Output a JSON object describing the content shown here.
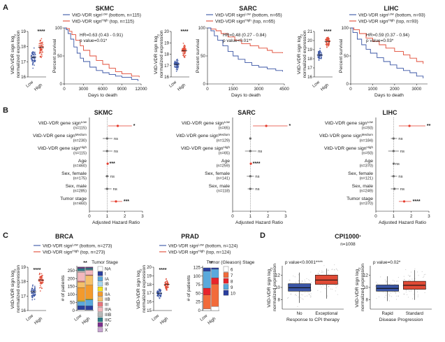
{
  "colors": {
    "low": "#3a55a5",
    "high": "#e04a35",
    "forest_point": "#e53b2c",
    "forest_gray": "#666666",
    "stage": [
      "#ffffff",
      "#2b3f9e",
      "#5aa9dc",
      "#a8d9f0",
      "#f3e51c",
      "#f39a2d",
      "#f5c06a",
      "#e8747c",
      "#f3b8bd",
      "#b8b8b8",
      "#2c7b87",
      "#7d2f8e",
      "#c7a4d1",
      "#8c8c8c",
      "#505050"
    ],
    "gleason": [
      "#ffffff",
      "#f26b3a",
      "#e8232a",
      "#5aa9dc",
      "#2b3f9e"
    ]
  },
  "panel_A": {
    "label": "A",
    "km_xlabel": "Days to death",
    "km_ylabel": "Percent survival",
    "dot_ylabel": [
      "VitD-VDR sign log",
      "normalized expression"
    ],
    "dot_ylabel_sub": "2",
    "dot_low": "Low",
    "dot_high": "High",
    "subpanels": [
      {
        "title": "SKMC",
        "legend_low": "VitD-VDR sign",
        "legend_low_sup": "Low",
        "legend_low_rest": " (bottom, n=115)",
        "legend_high": "VitD-VDR sign",
        "legend_high_sup": "High",
        "legend_high_rest": " (top, n=115)",
        "hr": "HR=0.63 (0.43 - 0.91)",
        "pval": "p value=0.01*",
        "sig": "****",
        "dot_yticks": [
          "16",
          "17",
          "18",
          "19"
        ],
        "xticks": [
          "0",
          "3000",
          "6000",
          "9000",
          "12000"
        ],
        "xmax": 12000,
        "yticks": [
          "0",
          "50",
          "100"
        ],
        "low_curve": [
          [
            0,
            100
          ],
          [
            300,
            97
          ],
          [
            600,
            90
          ],
          [
            1000,
            80
          ],
          [
            1500,
            66
          ],
          [
            2000,
            55
          ],
          [
            2500,
            46
          ],
          [
            3000,
            40
          ],
          [
            4000,
            30
          ],
          [
            5000,
            24
          ],
          [
            6000,
            20
          ],
          [
            7000,
            17
          ],
          [
            8000,
            14
          ],
          [
            9000,
            12
          ],
          [
            10500,
            8
          ],
          [
            11500,
            5
          ]
        ],
        "high_curve": [
          [
            0,
            100
          ],
          [
            400,
            99
          ],
          [
            800,
            94
          ],
          [
            1200,
            88
          ],
          [
            1800,
            78
          ],
          [
            2500,
            68
          ],
          [
            3000,
            60
          ],
          [
            4000,
            50
          ],
          [
            5000,
            42
          ],
          [
            6000,
            35
          ],
          [
            7000,
            28
          ],
          [
            8000,
            22
          ],
          [
            9000,
            18
          ],
          [
            10500,
            14
          ],
          [
            11700,
            12
          ]
        ],
        "dot_low_mean": 17.3,
        "dot_high_mean": 17.95,
        "dot_ymin": 16,
        "dot_ymax": 19
      },
      {
        "title": "SARC",
        "legend_low": "VitD-VDR sign",
        "legend_low_sup": "Low",
        "legend_low_rest": " (bottom, n=65)",
        "legend_high": "VitD-VDR sign",
        "legend_high_sup": "High",
        "legend_high_rest": " (top, n=65)",
        "hr": "HR=0.48 (0.27 - 0.84)",
        "pval": "p value<0.01**",
        "sig": "****",
        "dot_yticks": [
          "16",
          "17",
          "18",
          "19",
          "20"
        ],
        "xticks": [
          "0",
          "1500",
          "3000",
          "4500"
        ],
        "xmax": 4500,
        "yticks": [
          "0",
          "50",
          "100"
        ],
        "low_curve": [
          [
            0,
            100
          ],
          [
            200,
            95
          ],
          [
            400,
            86
          ],
          [
            600,
            78
          ],
          [
            900,
            68
          ],
          [
            1200,
            58
          ],
          [
            1500,
            50
          ],
          [
            1800,
            44
          ],
          [
            2200,
            38
          ],
          [
            2600,
            33
          ],
          [
            3000,
            30
          ],
          [
            3500,
            27
          ],
          [
            4000,
            24
          ],
          [
            4400,
            22
          ]
        ],
        "high_curve": [
          [
            0,
            100
          ],
          [
            200,
            98
          ],
          [
            500,
            95
          ],
          [
            800,
            90
          ],
          [
            1200,
            84
          ],
          [
            1600,
            78
          ],
          [
            2000,
            72
          ],
          [
            2500,
            68
          ],
          [
            3000,
            64
          ],
          [
            3500,
            60
          ],
          [
            3800,
            56
          ],
          [
            4400,
            55
          ]
        ],
        "dot_low_mean": 17.1,
        "dot_high_mean": 18.3,
        "dot_ymin": 16,
        "dot_ymax": 20
      },
      {
        "title": "LIHC",
        "legend_low": "VitD-VDR sign",
        "legend_low_sup": "Low",
        "legend_low_rest": " (bottom, n=93)",
        "legend_high": "VitD-VDR sign",
        "legend_high_sup": "High",
        "legend_high_rest": " (top, n=93)",
        "hr": "HR=0.59 (0.37 - 0.94)",
        "pval": "p value=0.03*",
        "sig": "****",
        "dot_yticks": [
          "16",
          "17",
          "18",
          "19",
          "20",
          "21"
        ],
        "xticks": [
          "0",
          "1000",
          "2000",
          "3000"
        ],
        "xmax": 3500,
        "yticks": [
          "0",
          "50",
          "100"
        ],
        "low_curve": [
          [
            0,
            100
          ],
          [
            100,
            92
          ],
          [
            300,
            80
          ],
          [
            500,
            70
          ],
          [
            700,
            62
          ],
          [
            900,
            55
          ],
          [
            1200,
            47
          ],
          [
            1500,
            40
          ],
          [
            1800,
            34
          ],
          [
            2100,
            28
          ],
          [
            2400,
            24
          ],
          [
            2700,
            20
          ],
          [
            3000,
            14
          ],
          [
            3300,
            10
          ]
        ],
        "high_curve": [
          [
            0,
            100
          ],
          [
            150,
            97
          ],
          [
            400,
            90
          ],
          [
            700,
            82
          ],
          [
            1000,
            76
          ],
          [
            1300,
            70
          ],
          [
            1600,
            64
          ],
          [
            2000,
            58
          ],
          [
            2400,
            52
          ],
          [
            2700,
            46
          ],
          [
            3000,
            40
          ],
          [
            3300,
            36
          ]
        ],
        "dot_low_mean": 18.4,
        "dot_high_mean": 19.9,
        "dot_ymin": 16,
        "dot_ymax": 21
      }
    ]
  },
  "panel_B": {
    "label": "B",
    "xlabel": "Adjusted Hazard Ratio",
    "xticks": [
      "0",
      "1",
      "2",
      "3"
    ],
    "subpanels": [
      {
        "title": "SKMC",
        "rows": [
          {
            "label": "VitD-VDR gene sign",
            "sup": "Low",
            "n": "(n=115)",
            "hr": 1.6,
            "lo": 1.05,
            "hi": 2.4,
            "sig": "*",
            "red": true
          },
          {
            "label": "VitD-VDR gene sign",
            "sup": "Medium",
            "n": "(n=230)",
            "hr": 1.0,
            "lo": 0.75,
            "hi": 1.3,
            "sig": "ns",
            "red": false
          },
          {
            "label": "VitD-VDR gene sign",
            "sup": "High",
            "n": "(n=115)",
            "hr": 1.0,
            "lo": 0.75,
            "hi": 1.3,
            "sig": "ns",
            "red": false
          },
          {
            "label": "Age",
            "sup": "",
            "n": "(n=460)",
            "hr": 1.03,
            "lo": 1.01,
            "hi": 1.05,
            "sig": "***",
            "red": true
          },
          {
            "label": "Sex, female",
            "sup": "",
            "n": "(n=175)",
            "hr": 1.0,
            "lo": 0.9,
            "hi": 1.1,
            "sig": "ns",
            "red": false
          },
          {
            "label": "Sex, male",
            "sup": "",
            "n": "(n=285)",
            "hr": 1.0,
            "lo": 0.85,
            "hi": 1.25,
            "sig": "ns",
            "red": false
          },
          {
            "label": "Tumor stage",
            "sup": "",
            "n": "(n=460)",
            "hr": 1.5,
            "lo": 1.2,
            "hi": 1.85,
            "sig": "***",
            "red": true
          }
        ]
      },
      {
        "title": "SARC",
        "rows": [
          {
            "label": "VitD-VDR gene sign",
            "sup": "Low",
            "n": "(n=65)",
            "hr": 1.9,
            "lo": 1.15,
            "hi": 3.1,
            "sig": "*",
            "red": true
          },
          {
            "label": "VitD-VDR gene sign",
            "sup": "Medium",
            "n": "(n=129)",
            "hr": 1.0,
            "lo": 0.95,
            "hi": 1.05,
            "sig": "",
            "red": false
          },
          {
            "label": "VitD-VDR gene sign",
            "sup": "High",
            "n": "(n=65)",
            "hr": 1.0,
            "lo": 0.7,
            "hi": 1.35,
            "sig": "ns",
            "red": false
          },
          {
            "label": "Age",
            "sup": "",
            "n": "(n=259)",
            "hr": 1.03,
            "lo": 1.01,
            "hi": 1.05,
            "sig": "****",
            "red": true
          },
          {
            "label": "Sex, female",
            "sup": "",
            "n": "(n=141)",
            "hr": 1.0,
            "lo": 0.8,
            "hi": 1.2,
            "sig": "ns",
            "red": false
          },
          {
            "label": "Sex, male",
            "sup": "",
            "n": "(n=118)",
            "hr": 1.0,
            "lo": 0.85,
            "hi": 1.2,
            "sig": "ns",
            "red": false
          }
        ]
      },
      {
        "title": "LIHC",
        "rows": [
          {
            "label": "VitD-VDR gene sign",
            "sup": "Low",
            "n": "(n=93)",
            "hr": 1.9,
            "lo": 1.3,
            "hi": 2.8,
            "sig": "**",
            "red": true
          },
          {
            "label": "VitD-VDR gene sign",
            "sup": "Medium",
            "n": "(n=184)",
            "hr": 1.0,
            "lo": 0.85,
            "hi": 1.2,
            "sig": "ns",
            "red": false
          },
          {
            "label": "VitD-VDR gene sign",
            "sup": "High",
            "n": "(n=93)",
            "hr": 1.0,
            "lo": 0.7,
            "hi": 1.3,
            "sig": "ns",
            "red": false
          },
          {
            "label": "Age",
            "sup": "",
            "n": "(n=370)",
            "hr": 1.01,
            "lo": 1.0,
            "hi": 1.02,
            "sig": "ns",
            "red": false
          },
          {
            "label": "Sex, female",
            "sup": "",
            "n": "(n=121)",
            "hr": 1.0,
            "lo": 0.85,
            "hi": 1.2,
            "sig": "ns",
            "red": false
          },
          {
            "label": "Sex, male",
            "sup": "",
            "n": "(n=249)",
            "hr": 1.05,
            "lo": 0.85,
            "hi": 1.3,
            "sig": "ns",
            "red": false
          },
          {
            "label": "Tumor stage",
            "sup": "",
            "n": "(n=370)",
            "hr": 1.6,
            "lo": 1.3,
            "hi": 2.0,
            "sig": "****",
            "red": true
          }
        ]
      }
    ]
  },
  "panel_C": {
    "label": "C",
    "dot_ylabel": [
      "VitD-VDR sign log",
      "normalized expression"
    ],
    "dot_ylabel_sub": "2",
    "bar_ylabel": "# of patients",
    "low": "Low",
    "high": "High",
    "brca": {
      "title": "BRCA",
      "legend_low": "VitD-VDR sign",
      "legend_low_sup": "Low",
      "legend_low_rest": " (bottom, n=273)",
      "legend_high": "VitD-VDR sign",
      "legend_high_sup": "High",
      "legend_high_rest": " (top, n=273)",
      "dot_sig": "****",
      "dot_yticks": [
        "16",
        "17",
        "18",
        "19"
      ],
      "dot_low_mean": 17.3,
      "dot_high_mean": 18.1,
      "dot_ymin": 16,
      "dot_ymax": 19,
      "bar_sig": "**",
      "bar_yticks": [
        "0",
        "50",
        "100",
        "150",
        "200",
        "250"
      ],
      "bar_ymax": 280,
      "stage_title": "Tumor Stage",
      "stages": [
        "NA",
        "I",
        "IA",
        "IB",
        "II",
        "IIA",
        "IIB",
        "III",
        "IIIA",
        "IIIB",
        "IIIC",
        "IV",
        "X"
      ],
      "stage_color_index": [
        0,
        1,
        2,
        3,
        4,
        5,
        6,
        7,
        8,
        9,
        10,
        11,
        12
      ],
      "low_values": [
        5,
        25,
        25,
        3,
        6,
        80,
        35,
        5,
        55,
        10,
        15,
        7,
        2
      ],
      "high_values": [
        4,
        25,
        38,
        2,
        5,
        85,
        60,
        4,
        28,
        5,
        10,
        5,
        2
      ]
    },
    "prad": {
      "title": "PRAD",
      "legend_low": "VitD-VDR sign",
      "legend_low_sup": "Low",
      "legend_low_rest": " (bottom, n=124)",
      "legend_high": "VitD-VDR sign",
      "legend_high_sup": "High",
      "legend_high_rest": " (top, n=124)",
      "dot_sig": "****",
      "dot_yticks": [
        "15",
        "16",
        "17",
        "18",
        "19",
        "20"
      ],
      "dot_low_mean": 17.0,
      "dot_high_mean": 18.0,
      "dot_ymin": 15,
      "dot_ymax": 20,
      "bar_sig": "**",
      "bar_yticks": [
        "0",
        "25",
        "50",
        "75",
        "100",
        "125"
      ],
      "bar_ymax": 130,
      "stage_title": "Tumor (Gleason) Stage",
      "stages": [
        "6",
        "7",
        "8",
        "9",
        "10"
      ],
      "stage_color_index": [
        0,
        1,
        2,
        3,
        4
      ],
      "low_values": [
        5,
        40,
        20,
        49,
        10
      ],
      "high_values": [
        12,
        65,
        18,
        25,
        4
      ]
    }
  },
  "panel_D": {
    "label": "D",
    "title": "CPI1000",
    "title_sup": "+",
    "subtitle": "n=1008",
    "ylabel": [
      "VitD-VDR sign log",
      "normalized expression"
    ],
    "ylabel_sub": "2",
    "yticks": [
      "8",
      "10",
      "12"
    ],
    "ymin": 6.5,
    "ymax": 13.5,
    "left": {
      "pval": "p value<0.0001****",
      "categories": [
        "No",
        "Exceptional"
      ],
      "xlabel": "Response to CPI therapy",
      "boxes": [
        {
          "q1": 9.4,
          "med": 9.95,
          "q3": 10.6,
          "wlo": 7.5,
          "whi": 12.4
        },
        {
          "q1": 10.5,
          "med": 11.2,
          "q3": 12.0,
          "wlo": 8.2,
          "whi": 13.0
        }
      ]
    },
    "right": {
      "pval": "p value=0.02*",
      "categories": [
        "Rapid",
        "Standard"
      ],
      "xlabel": "Disease Progression",
      "boxes": [
        {
          "q1": 9.4,
          "med": 9.85,
          "q3": 10.4,
          "wlo": 7.8,
          "whi": 11.8
        },
        {
          "q1": 9.7,
          "med": 10.35,
          "q3": 11.0,
          "wlo": 8.0,
          "whi": 12.8
        }
      ]
    }
  }
}
